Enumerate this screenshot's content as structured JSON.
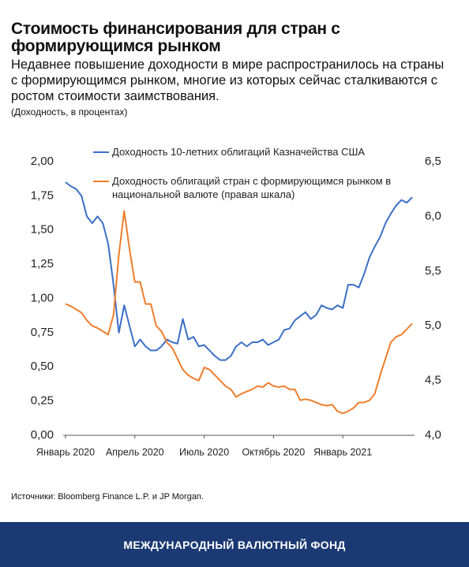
{
  "chart_data": {
    "type": "line",
    "title": "Стоимость финансирования для стран с формирующимся рынком",
    "subtitle": "Недавнее повышение доходности в мире распространилось на страны с формирующимся рынком, многие из которых сейчас сталкиваются с ростом стоимости заимствования.",
    "units_note": "(Доходность, в процентах)",
    "source": "Источники: Bloomberg Finance L.P. и JP Morgan.",
    "footer": "МЕЖДУНАРОДНЫЙ ВАЛЮТНЫЙ ФОНД",
    "categories": [
      "Январь 2020",
      null,
      null,
      null,
      null,
      null,
      null,
      null,
      null,
      null,
      null,
      null,
      null,
      "Апрель 2020",
      null,
      null,
      null,
      null,
      null,
      null,
      null,
      null,
      null,
      null,
      null,
      null,
      "Июль 2020",
      null,
      null,
      null,
      null,
      null,
      null,
      null,
      null,
      null,
      null,
      null,
      null,
      "Октябрь 2020",
      null,
      null,
      null,
      null,
      null,
      null,
      null,
      null,
      null,
      null,
      null,
      null,
      "Январь 2021",
      null,
      null,
      null,
      null,
      null,
      null,
      null,
      null,
      null,
      null,
      null,
      null,
      null
    ],
    "series": [
      {
        "name": "Доходность 10-летних облигаций Казначейства США",
        "color": "#3b6fc6",
        "values": [
          1.85,
          1.82,
          1.8,
          1.75,
          1.6,
          1.55,
          1.6,
          1.55,
          1.4,
          1.1,
          0.75,
          0.95,
          0.8,
          0.65,
          0.7,
          0.65,
          0.62,
          0.62,
          0.65,
          0.7,
          0.68,
          0.67,
          0.85,
          0.7,
          0.72,
          0.65,
          0.66,
          0.62,
          0.58,
          0.55,
          0.55,
          0.58,
          0.65,
          0.68,
          0.65,
          0.68,
          0.68,
          0.7,
          0.66,
          0.68,
          0.7,
          0.77,
          0.78,
          0.84,
          0.87,
          0.9,
          0.85,
          0.88,
          0.95,
          0.93,
          0.92,
          0.95,
          0.93,
          1.1,
          1.1,
          1.08,
          1.18,
          1.3,
          1.38,
          1.45,
          1.55,
          1.62,
          1.68,
          1.72,
          1.7,
          1.74
        ]
      },
      {
        "name": "Доходность облигаций стран с формирующимся рынком в национальной валюте (правая шкала)",
        "color": "#ef7d2b",
        "axis": "y2",
        "values": [
          5.2,
          5.18,
          5.15,
          5.12,
          5.05,
          5.0,
          4.98,
          4.95,
          4.92,
          5.1,
          5.65,
          6.05,
          5.7,
          5.4,
          5.4,
          5.2,
          5.2,
          5.0,
          4.95,
          4.85,
          4.8,
          4.7,
          4.6,
          4.55,
          4.52,
          4.5,
          4.62,
          4.6,
          4.55,
          4.5,
          4.45,
          4.42,
          4.35,
          4.38,
          4.4,
          4.42,
          4.45,
          4.44,
          4.48,
          4.45,
          4.44,
          4.45,
          4.42,
          4.42,
          4.32,
          4.33,
          4.32,
          4.3,
          4.28,
          4.27,
          4.28,
          4.22,
          4.2,
          4.22,
          4.25,
          4.3,
          4.3,
          4.32,
          4.38,
          4.55,
          4.7,
          4.85,
          4.9,
          4.92,
          4.97,
          5.02
        ]
      }
    ],
    "ylim": [
      0,
      2
    ],
    "yticks": [
      {
        "value": 0,
        "label": "0,00"
      },
      {
        "value": 0.25,
        "label": "0,25"
      },
      {
        "value": 0.5,
        "label": "0,50"
      },
      {
        "value": 0.75,
        "label": "0,75"
      },
      {
        "value": 1,
        "label": "1,00"
      },
      {
        "value": 1.25,
        "label": "1,25"
      },
      {
        "value": 1.5,
        "label": "1,50"
      },
      {
        "value": 1.75,
        "label": "1,75"
      },
      {
        "value": 2,
        "label": "2,00"
      }
    ],
    "y2lim": [
      4,
      6.5
    ],
    "y2ticks": [
      {
        "value": 4,
        "label": "4,0"
      },
      {
        "value": 4.5,
        "label": "4,5"
      },
      {
        "value": 5,
        "label": "5,0"
      },
      {
        "value": 5.5,
        "label": "5,5"
      },
      {
        "value": 6,
        "label": "6,0"
      },
      {
        "value": 6.5,
        "label": "6,5"
      }
    ],
    "grid": false
  }
}
